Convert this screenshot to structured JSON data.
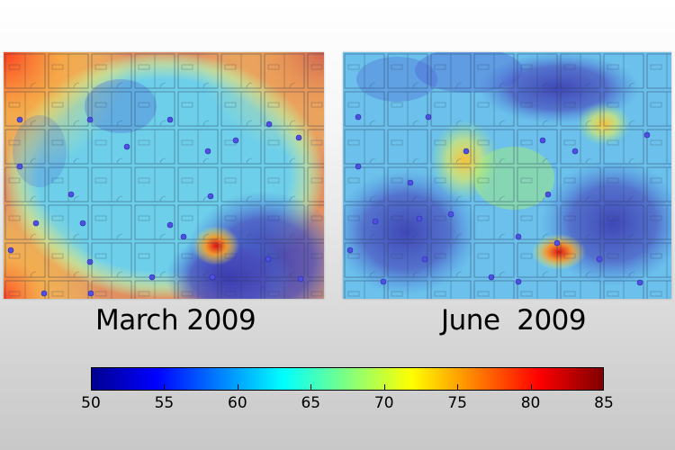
{
  "panels": [
    {
      "caption": "March 2009"
    },
    {
      "caption": "June  2009"
    }
  ],
  "colorbar": {
    "min": 50,
    "max": 85,
    "ticks": [
      "50",
      "55",
      "60",
      "65",
      "70",
      "75",
      "80",
      "85"
    ],
    "colors": [
      "#00008f",
      "#0000ff",
      "#0080ff",
      "#00ffff",
      "#80ff80",
      "#ffff00",
      "#ff8000",
      "#ff0000",
      "#800000"
    ]
  }
}
